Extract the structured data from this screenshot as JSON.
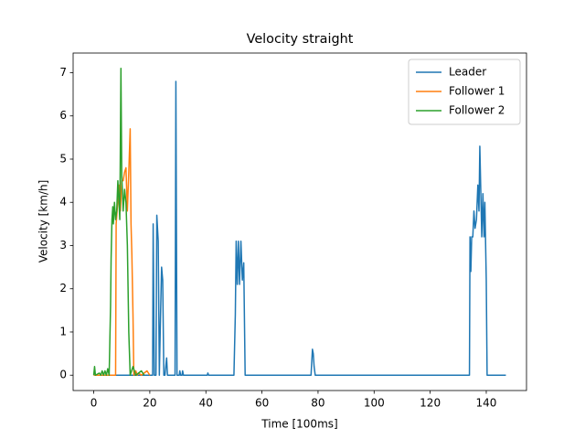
{
  "chart_data": {
    "type": "line",
    "title": "Velocity straight",
    "x_label": "Time [100ms]",
    "y_label": "Velocity [km/h]",
    "xlim": [
      -7.35,
      154.35
    ],
    "ylim": [
      -0.355,
      7.455
    ],
    "xticks": [
      0,
      20,
      40,
      60,
      80,
      100,
      120,
      140
    ],
    "yticks": [
      0,
      1,
      2,
      3,
      4,
      5,
      6,
      7
    ],
    "legend": "upper right",
    "grid": false,
    "series": [
      {
        "name": "Leader",
        "color": "#1f77b4",
        "x": [
          0,
          21,
          21.2,
          21.6,
          22.2,
          22.5,
          23,
          23.4,
          23.8,
          24.2,
          24.6,
          25,
          25.4,
          26,
          26.3,
          26.6,
          29,
          29.3,
          29.7,
          30.5,
          30.7,
          31,
          31.5,
          31.7,
          32,
          40.5,
          40.7,
          41,
          50,
          50.5,
          50.8,
          51.2,
          51.6,
          52,
          52.5,
          53,
          53.5,
          54,
          77.5,
          78,
          78.3,
          78.6,
          79,
          134,
          134.2,
          134.5,
          134.8,
          135.2,
          135.6,
          136,
          136.5,
          137,
          137.4,
          137.7,
          138,
          138.4,
          138.8,
          139.2,
          139.5,
          140,
          140.3,
          147
        ],
        "values": [
          0,
          0,
          3.5,
          0,
          0,
          3.7,
          3.1,
          0,
          1.3,
          2.5,
          2.2,
          0,
          0,
          0.4,
          0,
          0,
          0,
          6.8,
          0,
          0,
          0.1,
          0,
          0,
          0.1,
          0,
          0,
          0.05,
          0,
          0,
          1.4,
          3.1,
          2.1,
          3.1,
          2.1,
          3.1,
          2.2,
          2.6,
          0,
          0,
          0.6,
          0.5,
          0.2,
          0,
          0,
          3.2,
          2.4,
          3.2,
          3.2,
          3.8,
          3.4,
          3.6,
          4.4,
          3.8,
          5.3,
          4.4,
          3.2,
          4.2,
          3.2,
          4.0,
          2.2,
          0,
          0
        ]
      },
      {
        "name": "Follower 1",
        "color": "#ff7f0e",
        "x": [
          0,
          7.8,
          8,
          9,
          9.5,
          10,
          10.5,
          11,
          11.5,
          12,
          12.5,
          13,
          13.3,
          13.6,
          14,
          14.3,
          15,
          15.5,
          16,
          17,
          19,
          20
        ],
        "values": [
          0,
          0,
          3.5,
          4.4,
          3.8,
          4.5,
          4.5,
          4.7,
          4.8,
          3.8,
          4.7,
          5.7,
          3.5,
          2.8,
          1.4,
          0,
          0.1,
          0,
          0.05,
          0,
          0.1,
          0
        ]
      },
      {
        "name": "Follower 2",
        "color": "#2ca02c",
        "x": [
          0,
          0.3,
          0.6,
          2,
          2.5,
          3,
          3.5,
          4,
          4.5,
          5,
          5.5,
          6,
          6.2,
          6.5,
          6.8,
          7,
          7.4,
          7.8,
          8.2,
          8.6,
          9,
          9.3,
          9.7,
          10,
          10.5,
          11,
          11.5,
          12,
          12.5,
          13,
          14,
          15,
          17,
          18
        ],
        "values": [
          0,
          0.2,
          0,
          0.05,
          0,
          0.1,
          0,
          0.1,
          0,
          0.15,
          0,
          1.6,
          2.7,
          3.6,
          3.9,
          3.5,
          4.0,
          3.6,
          3.8,
          4.5,
          4.0,
          3.6,
          7.1,
          4.6,
          3.8,
          4.3,
          4.0,
          3.0,
          1.0,
          0,
          0.2,
          0,
          0.1,
          0
        ]
      }
    ]
  }
}
